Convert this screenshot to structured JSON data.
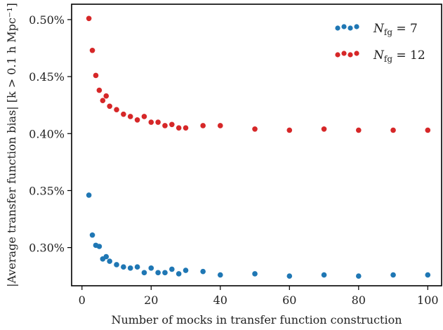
{
  "chart_data": {
    "type": "scatter",
    "xlabel": "Number of mocks in transfer function construction",
    "ylabel": "|Average transfer function bias| [k > 0.1 h Mpc⁻¹]",
    "xlim": [
      -3,
      104
    ],
    "ylim": [
      0.2665,
      0.5135
    ],
    "xticks": [
      0,
      20,
      40,
      60,
      80,
      100
    ],
    "xtick_labels": [
      "0",
      "20",
      "40",
      "60",
      "80",
      "100"
    ],
    "yticks": [
      0.3,
      0.35,
      0.4,
      0.45,
      0.5
    ],
    "ytick_labels": [
      "0.30%",
      "0.35%",
      "0.40%",
      "0.45%",
      "0.50%"
    ],
    "legend_position": "top-right",
    "grid": false,
    "series": [
      {
        "name": "N_fg = 7",
        "color": "#1f77b4",
        "x": [
          2,
          3,
          4,
          5,
          6,
          7,
          8,
          10,
          12,
          14,
          16,
          18,
          20,
          22,
          24,
          26,
          28,
          30,
          35,
          40,
          50,
          60,
          70,
          80,
          90,
          100
        ],
        "y": [
          0.346,
          0.311,
          0.302,
          0.301,
          0.29,
          0.292,
          0.288,
          0.285,
          0.283,
          0.282,
          0.283,
          0.278,
          0.282,
          0.278,
          0.278,
          0.281,
          0.277,
          0.28,
          0.279,
          0.276,
          0.277,
          0.275,
          0.276,
          0.275,
          0.276,
          0.276
        ]
      },
      {
        "name": "N_fg = 12",
        "color": "#d62728",
        "x": [
          2,
          3,
          4,
          5,
          6,
          7,
          8,
          10,
          12,
          14,
          16,
          18,
          20,
          22,
          24,
          26,
          28,
          30,
          35,
          40,
          50,
          60,
          70,
          80,
          90,
          100
        ],
        "y": [
          0.501,
          0.473,
          0.451,
          0.438,
          0.429,
          0.433,
          0.424,
          0.421,
          0.417,
          0.415,
          0.412,
          0.415,
          0.41,
          0.41,
          0.407,
          0.408,
          0.405,
          0.405,
          0.407,
          0.407,
          0.404,
          0.403,
          0.404,
          0.403,
          0.403,
          0.403
        ]
      }
    ]
  }
}
